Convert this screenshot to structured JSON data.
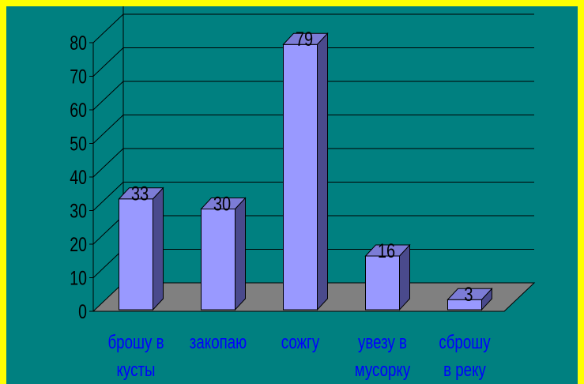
{
  "chart_data": {
    "type": "bar",
    "style": "3d-column",
    "categories": [
      [
        "брошу в",
        "кусты"
      ],
      [
        "закопаю"
      ],
      [
        "сожгу"
      ],
      [
        "увезу в",
        "мусорку"
      ],
      [
        "сброшу",
        "в реку"
      ]
    ],
    "values": [
      33,
      30,
      79,
      16,
      3
    ],
    "data_labels": [
      "33",
      "30",
      "79",
      "16",
      "3"
    ],
    "ylim": [
      0,
      80
    ],
    "yticks": [
      "0",
      "10",
      "20",
      "30",
      "40",
      "50",
      "60",
      "70",
      "80"
    ],
    "grid": true,
    "legend": "none",
    "title": "",
    "xlabel": "",
    "ylabel": ""
  },
  "colors": {
    "border": "#ffff00",
    "background": "#008080",
    "bar_front": "#9999ff",
    "bar_side": "#4a4a8c",
    "bar_top": "#7c7cd6",
    "floor": "#808080",
    "gridline": "#000000",
    "axis_text": "#000000",
    "category_text": "#0000ff"
  }
}
